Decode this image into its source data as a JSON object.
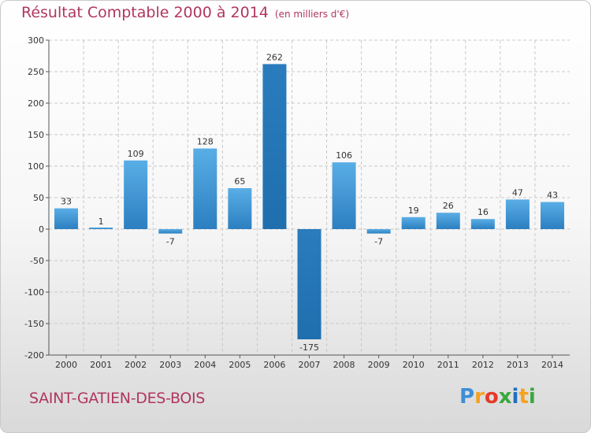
{
  "chart_data": {
    "type": "bar",
    "title": "Résultat Comptable 2000 à 2014",
    "subtitle": "(en milliers d'€)",
    "categories": [
      "2000",
      "2001",
      "2002",
      "2003",
      "2004",
      "2005",
      "2006",
      "2007",
      "2008",
      "2009",
      "2010",
      "2011",
      "2012",
      "2013",
      "2014"
    ],
    "values": [
      33,
      1,
      109,
      -7,
      128,
      65,
      262,
      -175,
      106,
      -7,
      19,
      26,
      16,
      47,
      43
    ],
    "value_labels": [
      "33",
      "1",
      "109",
      "-7",
      "128",
      "65",
      "262",
      "-175",
      "106",
      "-7",
      "19",
      "26",
      "16",
      "47",
      "43"
    ],
    "ylim": [
      -200,
      300
    ],
    "yticks": [
      -200,
      -150,
      -100,
      -50,
      0,
      50,
      100,
      150,
      200,
      250,
      300
    ],
    "ytick_labels": [
      "-200",
      "-150",
      "-100",
      "-50",
      "0",
      "50",
      "100",
      "150",
      "200",
      "250",
      "300"
    ],
    "xlabel": "",
    "ylabel": "",
    "grid": true,
    "colors": {
      "bar_light": "#5aaee6",
      "bar_dark": "#2c7fc0",
      "bar_max": "#2a7cbd",
      "grid": "#c8c8c8",
      "axis": "#555555"
    }
  },
  "commune": "SAINT-GATIEN-DES-BOIS",
  "logo": {
    "letters": [
      "P",
      "r",
      "o",
      "x",
      "i",
      "t",
      "i"
    ],
    "colors": [
      "#3d8fd6",
      "#f4a21f",
      "#e53a28",
      "#3aa83d",
      "#1d6fc2",
      "#f4a21f",
      "#3aa83d"
    ]
  }
}
